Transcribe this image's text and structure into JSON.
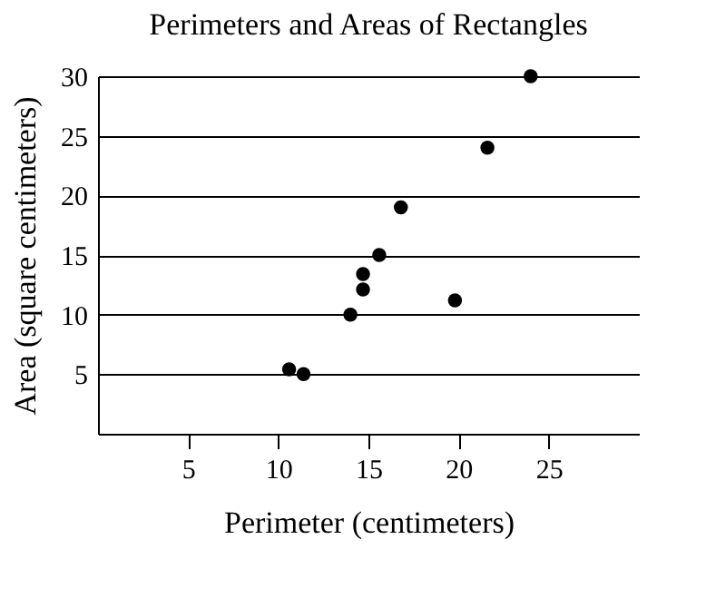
{
  "chart_data": {
    "type": "scatter",
    "title": "Perimeters and Areas of Rectangles",
    "xlabel": "Perimeter (centimeters)",
    "ylabel": "Area (square centimeters)",
    "x": [
      10.6,
      11.4,
      14.0,
      14.7,
      14.7,
      15.6,
      16.8,
      19.8,
      21.6,
      24.0
    ],
    "series": [
      {
        "color": "#000000",
        "values": [
          5.4,
          5,
          10,
          13.4,
          12.1,
          15,
          19,
          11.2,
          24,
          30
        ]
      }
    ],
    "xlim": [
      0,
      30
    ],
    "xticks": [
      5,
      10,
      15,
      20,
      25
    ],
    "ylim": [
      0,
      30
    ],
    "yticks": [
      5,
      10,
      15,
      20,
      25,
      30
    ],
    "grid": "y",
    "marker": "circle"
  }
}
